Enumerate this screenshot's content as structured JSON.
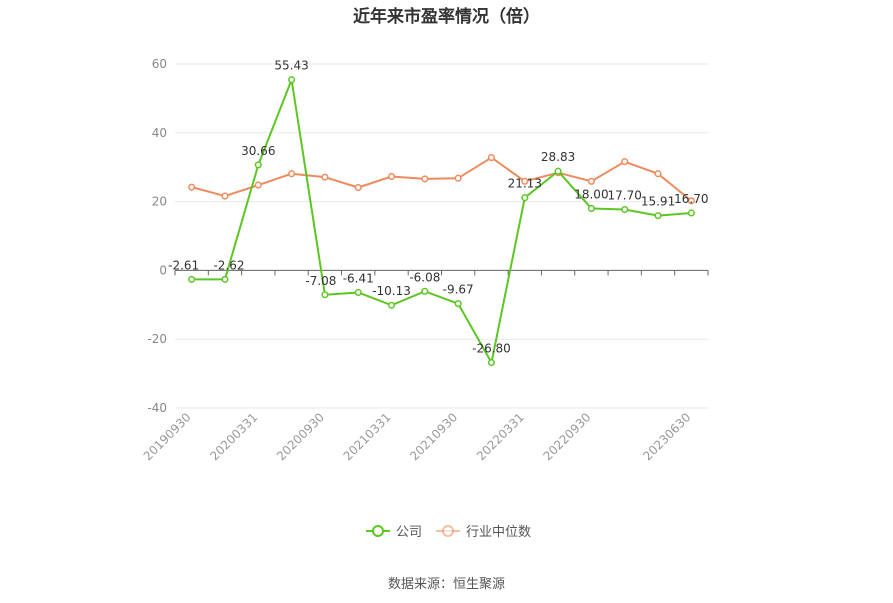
{
  "title": "近年来市盈率情况（倍）",
  "source": "数据来源：恒生聚源",
  "colors": {
    "company": "#5cc623",
    "industry": "#ee8a5c",
    "grid": "#e8e8e8",
    "axis": "#666666"
  },
  "chart_data": {
    "type": "line",
    "title": "近年来市盈率情况（倍）",
    "ylim": [
      -40,
      60
    ],
    "yticks": [
      -40,
      -20,
      0,
      20,
      40,
      60
    ],
    "grid": "horizontal",
    "legend_position": "bottom",
    "x_tick_labels": [
      "20190930",
      "20200331",
      "20200930",
      "20210331",
      "20210930",
      "20220331",
      "20220930",
      "20230630"
    ],
    "x": [
      "20190930",
      "20191231",
      "20200331",
      "20200630",
      "20200930",
      "20201231",
      "20210331",
      "20210630",
      "20210930",
      "20211231",
      "20220331",
      "20220630",
      "20220930",
      "20221231",
      "20230331",
      "20230630"
    ],
    "series": [
      {
        "name": "公司",
        "values": [
          -2.61,
          -2.62,
          30.66,
          55.43,
          -7.08,
          -6.41,
          -10.13,
          -6.08,
          -9.67,
          -26.8,
          21.13,
          28.83,
          18.0,
          17.7,
          15.91,
          16.7
        ],
        "labels": [
          "-2.61",
          "-2.62",
          "30.66",
          "55.43",
          "-7.08",
          "-6.41",
          "-10.13",
          "-6.08",
          "-9.67",
          "-26.80",
          "21.13",
          "28.83",
          "18.00",
          "17.70",
          "15.91",
          "16.70"
        ]
      },
      {
        "name": "行业中位数",
        "values": [
          24.2,
          21.6,
          24.8,
          28.1,
          27.1,
          24.1,
          27.3,
          26.6,
          26.8,
          32.8,
          25.9,
          28.4,
          25.9,
          31.6,
          28.1,
          20.2
        ]
      }
    ]
  }
}
